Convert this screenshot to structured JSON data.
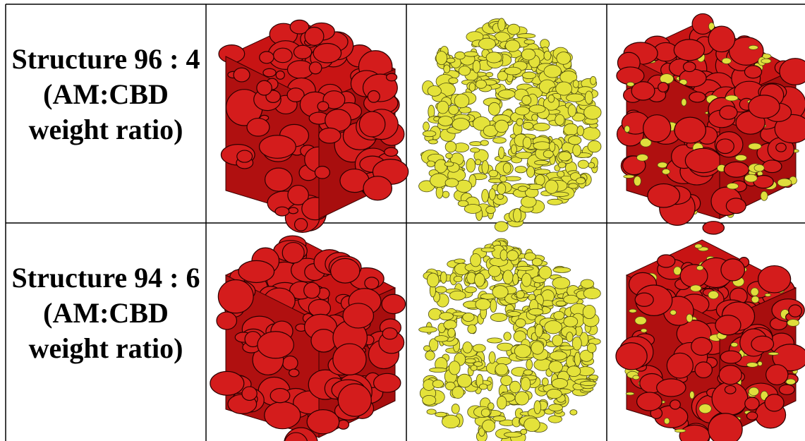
{
  "table": {
    "rows": [
      {
        "label": [
          "Structure 96 : 4",
          "(AM:CBD",
          "weight ratio)"
        ]
      },
      {
        "label": [
          "Structure 94 : 6",
          "(AM:CBD",
          "weight ratio)"
        ]
      }
    ]
  }
}
